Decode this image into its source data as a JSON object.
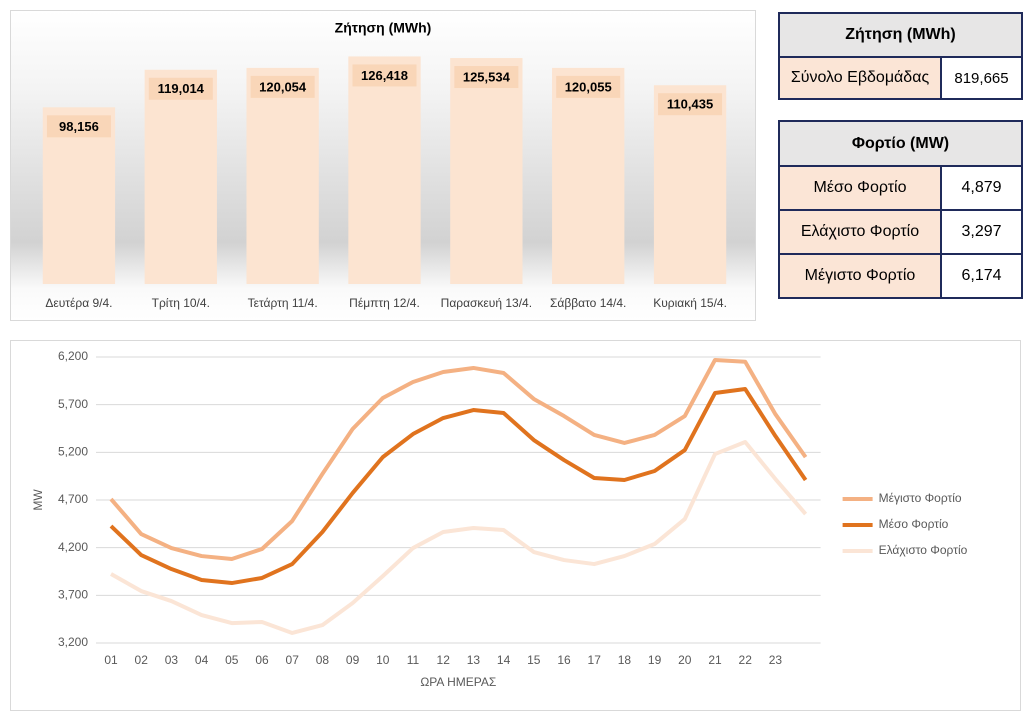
{
  "chart_data": [
    {
      "type": "bar",
      "title": "Ζήτηση (MWh)",
      "categories": [
        "Δευτέρα 9/4.",
        "Τρίτη 10/4.",
        "Τετάρτη 11/4.",
        "Πέμπτη 12/4.",
        "Παρασκευή 13/4.",
        "Σάββατο 14/4.",
        "Κυριακή 15/4."
      ],
      "values": [
        98156,
        119014,
        120054,
        126418,
        125534,
        120055,
        110435
      ],
      "value_labels": [
        "98,156",
        "119,014",
        "120,054",
        "126,418",
        "125,534",
        "120,055",
        "110,435"
      ],
      "color": "#fce4d1",
      "ylim": [
        0,
        135000
      ]
    },
    {
      "type": "line",
      "x_label": "ΩΡΑ ΗΜΕΡΑΣ",
      "y_label": "MW",
      "categories": [
        "01",
        "02",
        "03",
        "04",
        "05",
        "06",
        "07",
        "08",
        "09",
        "10",
        "11",
        "12",
        "13",
        "14",
        "15",
        "16",
        "17",
        "18",
        "19",
        "20",
        "21",
        "22",
        "23",
        null
      ],
      "ylim": [
        3200,
        6200
      ],
      "yticks": [
        {
          "value": 3200,
          "label": "3,200"
        },
        {
          "value": 3700,
          "label": "3,700"
        },
        {
          "value": 4200,
          "label": "4,200"
        },
        {
          "value": 4700,
          "label": "4,700"
        },
        {
          "value": 5200,
          "label": "5,200"
        },
        {
          "value": 5700,
          "label": "5,700"
        },
        {
          "value": 6200,
          "label": "6,200"
        }
      ],
      "grid": true,
      "legend": "right",
      "series": [
        {
          "name": "Μέγιστο Φορτίο",
          "color": "#f4b183",
          "values": [
            4710,
            4343,
            4196,
            4112,
            4081,
            4186,
            4480,
            4973,
            5445,
            5770,
            5938,
            6043,
            6085,
            6032,
            5760,
            5581,
            5382,
            5298,
            5382,
            5581,
            6169,
            6150,
            5600,
            5150
          ]
        },
        {
          "name": "Μέσο Φορτίο",
          "color": "#e0731e",
          "values": [
            4427,
            4123,
            3976,
            3861,
            3829,
            3882,
            4028,
            4364,
            4773,
            5150,
            5392,
            5560,
            5644,
            5613,
            5329,
            5119,
            4931,
            4910,
            5004,
            5224,
            5822,
            5864,
            5371,
            4910
          ]
        },
        {
          "name": "Ελάχιστο Φορτίο",
          "color": "#fbe5d6",
          "values": [
            3924,
            3745,
            3640,
            3493,
            3409,
            3420,
            3305,
            3388,
            3619,
            3902,
            4196,
            4364,
            4406,
            4385,
            4154,
            4070,
            4028,
            4112,
            4238,
            4500,
            5182,
            5308,
            4920,
            4553
          ]
        }
      ]
    }
  ],
  "tables": [
    {
      "header": "Ζήτηση (MWh)",
      "rows": [
        [
          "Σύνολο Εβδομάδας",
          "819,665"
        ]
      ]
    },
    {
      "header": "Φορτίο (MW)",
      "rows": [
        [
          "Μέσο Φορτίο",
          "4,879"
        ],
        [
          "Ελάχιστο Φορτίο",
          "3,297"
        ],
        [
          "Μέγιστο Φορτίο",
          "6,174"
        ]
      ]
    }
  ]
}
